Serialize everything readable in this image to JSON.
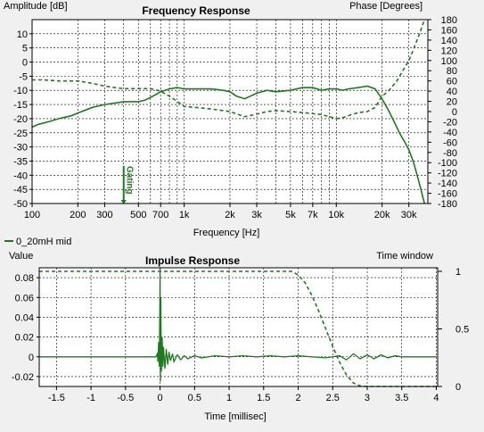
{
  "colors": {
    "series": "#1e7a1e",
    "grid": "#000000",
    "background": "#ffffff",
    "window": "#f0f0f0"
  },
  "legend": {
    "label": "0_20mH mid"
  },
  "chart_data": [
    {
      "type": "line",
      "title": "Frequency Response",
      "xlabel": "Frequency [Hz]",
      "ylabel": "Amplitude [dB]",
      "y2label": "Phase [Degrees]",
      "xscale": "log",
      "xlim": [
        100,
        40000
      ],
      "ylim": [
        -50,
        15
      ],
      "y2lim": [
        -180,
        180
      ],
      "xticks": [
        100,
        200,
        300,
        500,
        700,
        1000,
        2000,
        3000,
        5000,
        7000,
        10000,
        20000,
        30000
      ],
      "xtick_labels": [
        "100",
        "200",
        "300",
        "500",
        "700",
        "1k",
        "2k",
        "3k",
        "5k",
        "7k",
        "10k",
        "20k",
        "30k"
      ],
      "yticks": [
        10,
        5,
        0,
        -5,
        -10,
        -15,
        -20,
        -25,
        -30,
        -35,
        -40,
        -45,
        -50
      ],
      "y2ticks": [
        180,
        160,
        140,
        120,
        100,
        80,
        60,
        40,
        20,
        0,
        -20,
        -40,
        -60,
        -80,
        -100,
        -120,
        -140,
        -160,
        -180
      ],
      "grid": true,
      "annotation": {
        "text": "Gating",
        "x": 400
      },
      "series": [
        {
          "name": "0_20mH mid",
          "role": "amplitude",
          "style": "solid",
          "x": [
            100,
            110,
            130,
            150,
            180,
            200,
            250,
            300,
            350,
            400,
            450,
            500,
            550,
            600,
            650,
            700,
            800,
            900,
            1000,
            1200,
            1500,
            1800,
            2000,
            2200,
            2500,
            3000,
            3500,
            4000,
            5000,
            6000,
            7000,
            8000,
            9000,
            10000,
            11000,
            12000,
            14000,
            16000,
            18000,
            20000,
            22000,
            24000,
            26000,
            28000,
            30000,
            32000,
            34000,
            36000,
            38000
          ],
          "y": [
            -23,
            -22,
            -21,
            -20,
            -19,
            -18,
            -16,
            -15,
            -14.5,
            -14,
            -14,
            -14,
            -13.5,
            -12.5,
            -11.5,
            -10.5,
            -9.5,
            -9,
            -9.5,
            -9.5,
            -9.5,
            -10,
            -10.5,
            -12,
            -13,
            -11,
            -10,
            -10.5,
            -10,
            -9,
            -9,
            -10,
            -9.5,
            -9.5,
            -10,
            -9.5,
            -9,
            -8.5,
            -9.5,
            -13,
            -17,
            -21,
            -25,
            -28,
            -31,
            -35,
            -40,
            -45,
            -50
          ]
        },
        {
          "name": "0_20mH mid",
          "role": "phase",
          "style": "dashed",
          "x": [
            100,
            120,
            150,
            200,
            250,
            300,
            350,
            400,
            500,
            600,
            700,
            800,
            900,
            1000,
            1200,
            1500,
            1800,
            2000,
            2500,
            3000,
            3500,
            4000,
            5000,
            6000,
            7000,
            8000,
            9000,
            10000,
            11000,
            12000,
            14000,
            16000,
            18000,
            20000,
            22000,
            25000,
            28000,
            30000,
            32000,
            35000,
            38000
          ],
          "y": [
            62,
            62,
            60,
            60,
            55,
            50,
            47,
            45,
            45,
            45,
            40,
            30,
            20,
            10,
            8,
            5,
            2,
            0,
            -10,
            -5,
            0,
            2,
            0,
            -2,
            -4,
            -6,
            -10,
            -14,
            -12,
            -8,
            -2,
            0,
            8,
            30,
            40,
            60,
            85,
            100,
            120,
            150,
            180
          ]
        }
      ]
    },
    {
      "type": "line",
      "title": "Impulse Response",
      "xlabel": "Time [millisec]",
      "ylabel": "Value",
      "y2label": "Time window",
      "xlim": [
        -1.75,
        4.02
      ],
      "ylim": [
        -0.03,
        0.09
      ],
      "y2lim": [
        0,
        1
      ],
      "xticks": [
        -1.5,
        -1,
        -0.5,
        0,
        0.5,
        1,
        1.5,
        2,
        2.5,
        3,
        3.5,
        4
      ],
      "xtick_labels": [
        "-1.5",
        "-1",
        "-0.5",
        "0",
        "0.5",
        "1",
        "1.5",
        "2",
        "2.5",
        "3",
        "3.5",
        "4"
      ],
      "yticks": [
        0.08,
        0.06,
        0.04,
        0.02,
        0,
        -0.02
      ],
      "ytick_labels": [
        "0.08",
        "0.06",
        "0.04",
        "0.02",
        "0",
        "-0.02"
      ],
      "y2ticks": [
        1,
        0.5,
        0
      ],
      "y2tick_labels": [
        "1",
        "0.5",
        "0"
      ],
      "grid": true,
      "series": [
        {
          "name": "impulse",
          "role": "impulse",
          "style": "solid",
          "x": [
            -1.75,
            -0.06,
            -0.04,
            -0.03,
            -0.02,
            -0.01,
            0.0,
            0.005,
            0.01,
            0.02,
            0.03,
            0.04,
            0.05,
            0.07,
            0.09,
            0.11,
            0.13,
            0.15,
            0.18,
            0.2,
            0.25,
            0.3,
            0.35,
            0.4,
            0.5,
            0.6,
            0.8,
            1.0,
            1.2,
            1.4,
            1.6,
            1.8,
            2.0,
            2.2,
            2.4,
            2.6,
            2.7,
            2.8,
            2.9,
            3.0,
            3.1,
            3.2,
            3.3,
            3.4,
            3.5,
            3.7,
            4.0
          ],
          "y": [
            0,
            0,
            0.003,
            -0.005,
            0.015,
            -0.01,
            0.09,
            -0.025,
            0.06,
            -0.015,
            0.02,
            -0.01,
            0.01,
            -0.012,
            0.008,
            -0.008,
            0.005,
            -0.004,
            0.003,
            -0.005,
            0.002,
            -0.003,
            0.001,
            -0.002,
            0.001,
            -0.001,
            0.001,
            0,
            0.001,
            0,
            0.001,
            0,
            0.001,
            0,
            -0.001,
            0.001,
            -0.003,
            0.003,
            -0.002,
            0.002,
            -0.002,
            0.002,
            -0.001,
            0.001,
            0,
            0,
            0
          ]
        },
        {
          "name": "time window",
          "role": "window",
          "style": "dashed",
          "x": [
            -1.75,
            1.9,
            2.0,
            2.1,
            2.2,
            2.3,
            2.4,
            2.5,
            2.6,
            2.7,
            2.8,
            2.9,
            3.0,
            4.0
          ],
          "y": [
            1,
            1,
            0.97,
            0.9,
            0.79,
            0.65,
            0.5,
            0.35,
            0.21,
            0.1,
            0.03,
            0.005,
            0,
            0
          ]
        }
      ]
    }
  ]
}
